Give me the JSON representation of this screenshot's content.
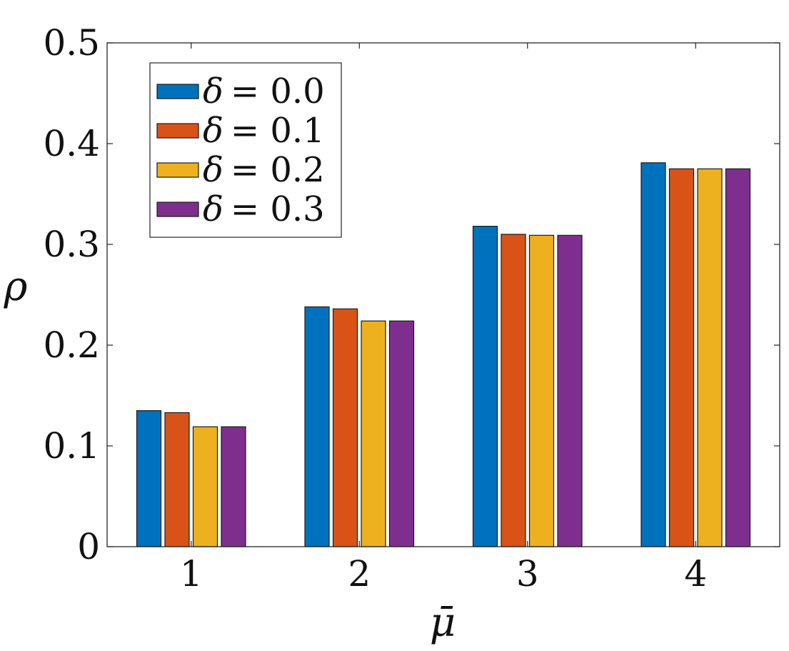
{
  "chart_data": {
    "type": "bar",
    "title": "",
    "xlabel": "μ̄",
    "ylabel": "ρ",
    "ylim": [
      0,
      0.5
    ],
    "yticks": [
      "0",
      "0.1",
      "0.2",
      "0.3",
      "0.4",
      "0.5"
    ],
    "categories": [
      "1",
      "2",
      "3",
      "4"
    ],
    "grid": false,
    "legend_position": "top-left",
    "series": [
      {
        "name": "δ = 0.0",
        "symbol": "δ",
        "eq": "= 0.0",
        "color": "#0072BD",
        "values": [
          0.135,
          0.238,
          0.318,
          0.381
        ]
      },
      {
        "name": "δ = 0.1",
        "symbol": "δ",
        "eq": "= 0.1",
        "color": "#D95319",
        "values": [
          0.133,
          0.236,
          0.31,
          0.375
        ]
      },
      {
        "name": "δ = 0.2",
        "symbol": "δ",
        "eq": "= 0.2",
        "color": "#EDB120",
        "values": [
          0.119,
          0.224,
          0.309,
          0.375
        ]
      },
      {
        "name": "δ = 0.3",
        "symbol": "δ",
        "eq": "= 0.3",
        "color": "#7E2F8E",
        "values": [
          0.119,
          0.224,
          0.309,
          0.375
        ]
      }
    ]
  }
}
